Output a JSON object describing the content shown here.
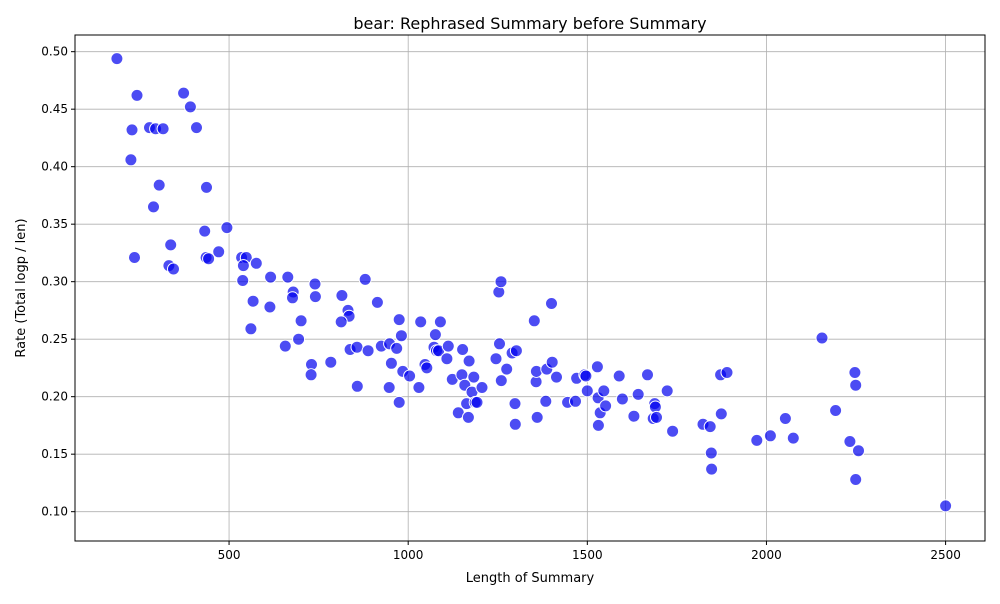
{
  "chart_data": {
    "type": "scatter",
    "title": "bear: Rephrased Summary before Summary",
    "xlabel": "Length of Summary",
    "ylabel": "Rate (Total logp / len)",
    "xlim": [
      70,
      2610
    ],
    "ylim": [
      0.0745,
      0.5145
    ],
    "xticks": [
      500,
      1000,
      1500,
      2000,
      2500
    ],
    "yticks": [
      0.1,
      0.15,
      0.2,
      0.25,
      0.3,
      0.35,
      0.4,
      0.45,
      0.5
    ],
    "xtick_labels": [
      "500",
      "1000",
      "1500",
      "2000",
      "2500"
    ],
    "ytick_labels": [
      "0.10",
      "0.15",
      "0.20",
      "0.25",
      "0.30",
      "0.35",
      "0.40",
      "0.45",
      "0.50"
    ],
    "grid": true,
    "marker_color": "#0000ee",
    "points": [
      [
        187,
        0.494
      ],
      [
        243,
        0.462
      ],
      [
        229,
        0.432
      ],
      [
        278,
        0.434
      ],
      [
        295,
        0.433
      ],
      [
        316,
        0.433
      ],
      [
        226,
        0.406
      ],
      [
        373,
        0.464
      ],
      [
        392,
        0.452
      ],
      [
        409,
        0.434
      ],
      [
        305,
        0.384
      ],
      [
        437,
        0.382
      ],
      [
        289,
        0.365
      ],
      [
        494,
        0.347
      ],
      [
        432,
        0.344
      ],
      [
        337,
        0.332
      ],
      [
        236,
        0.321
      ],
      [
        332,
        0.314
      ],
      [
        345,
        0.311
      ],
      [
        436,
        0.321
      ],
      [
        443,
        0.32
      ],
      [
        471,
        0.326
      ],
      [
        535,
        0.321
      ],
      [
        548,
        0.321
      ],
      [
        540,
        0.314
      ],
      [
        576,
        0.316
      ],
      [
        538,
        0.301
      ],
      [
        567,
        0.283
      ],
      [
        561,
        0.259
      ],
      [
        614,
        0.278
      ],
      [
        616,
        0.304
      ],
      [
        664,
        0.304
      ],
      [
        679,
        0.291
      ],
      [
        677,
        0.286
      ],
      [
        740,
        0.298
      ],
      [
        741,
        0.287
      ],
      [
        657,
        0.244
      ],
      [
        694,
        0.25
      ],
      [
        701,
        0.266
      ],
      [
        730,
        0.228
      ],
      [
        729,
        0.219
      ],
      [
        784,
        0.23
      ],
      [
        815,
        0.288
      ],
      [
        832,
        0.275
      ],
      [
        835,
        0.27
      ],
      [
        813,
        0.265
      ],
      [
        838,
        0.241
      ],
      [
        857,
        0.243
      ],
      [
        880,
        0.302
      ],
      [
        888,
        0.24
      ],
      [
        914,
        0.282
      ],
      [
        925,
        0.244
      ],
      [
        948,
        0.246
      ],
      [
        968,
        0.242
      ],
      [
        975,
        0.267
      ],
      [
        981,
        0.253
      ],
      [
        953,
        0.229
      ],
      [
        985,
        0.222
      ],
      [
        858,
        0.209
      ],
      [
        947,
        0.208
      ],
      [
        975,
        0.195
      ],
      [
        1004,
        0.218
      ],
      [
        1030,
        0.208
      ],
      [
        1035,
        0.265
      ],
      [
        1047,
        0.228
      ],
      [
        1052,
        0.225
      ],
      [
        1072,
        0.243
      ],
      [
        1076,
        0.254
      ],
      [
        1079,
        0.24
      ],
      [
        1085,
        0.24
      ],
      [
        1090,
        0.265
      ],
      [
        1108,
        0.233
      ],
      [
        1112,
        0.244
      ],
      [
        1123,
        0.215
      ],
      [
        1140,
        0.186
      ],
      [
        1152,
        0.241
      ],
      [
        1150,
        0.219
      ],
      [
        1158,
        0.21
      ],
      [
        1163,
        0.194
      ],
      [
        1170,
        0.231
      ],
      [
        1168,
        0.182
      ],
      [
        1178,
        0.204
      ],
      [
        1183,
        0.217
      ],
      [
        1187,
        0.195
      ],
      [
        1192,
        0.195
      ],
      [
        1206,
        0.208
      ],
      [
        1245,
        0.233
      ],
      [
        1253,
        0.291
      ],
      [
        1255,
        0.246
      ],
      [
        1259,
        0.3
      ],
      [
        1260,
        0.214
      ],
      [
        1275,
        0.224
      ],
      [
        1290,
        0.238
      ],
      [
        1298,
        0.194
      ],
      [
        1299,
        0.176
      ],
      [
        1302,
        0.24
      ],
      [
        1352,
        0.266
      ],
      [
        1357,
        0.213
      ],
      [
        1358,
        0.222
      ],
      [
        1360,
        0.182
      ],
      [
        1384,
        0.196
      ],
      [
        1387,
        0.224
      ],
      [
        1400,
        0.281
      ],
      [
        1402,
        0.23
      ],
      [
        1414,
        0.217
      ],
      [
        1445,
        0.195
      ],
      [
        1467,
        0.196
      ],
      [
        1470,
        0.216
      ],
      [
        1493,
        0.219
      ],
      [
        1496,
        0.218
      ],
      [
        1500,
        0.205
      ],
      [
        1528,
        0.226
      ],
      [
        1530,
        0.199
      ],
      [
        1531,
        0.175
      ],
      [
        1536,
        0.186
      ],
      [
        1546,
        0.205
      ],
      [
        1551,
        0.192
      ],
      [
        1589,
        0.218
      ],
      [
        1598,
        0.198
      ],
      [
        1630,
        0.183
      ],
      [
        1642,
        0.202
      ],
      [
        1668,
        0.219
      ],
      [
        1684,
        0.181
      ],
      [
        1688,
        0.194
      ],
      [
        1690,
        0.191
      ],
      [
        1693,
        0.182
      ],
      [
        1723,
        0.205
      ],
      [
        1738,
        0.17
      ],
      [
        1823,
        0.176
      ],
      [
        1843,
        0.174
      ],
      [
        1846,
        0.151
      ],
      [
        1847,
        0.137
      ],
      [
        1872,
        0.219
      ],
      [
        1874,
        0.185
      ],
      [
        1890,
        0.221
      ],
      [
        1973,
        0.162
      ],
      [
        2011,
        0.166
      ],
      [
        2053,
        0.181
      ],
      [
        2075,
        0.164
      ],
      [
        2155,
        0.251
      ],
      [
        2193,
        0.188
      ],
      [
        2233,
        0.161
      ],
      [
        2247,
        0.221
      ],
      [
        2249,
        0.21
      ],
      [
        2249,
        0.128
      ],
      [
        2257,
        0.153
      ],
      [
        2500,
        0.105
      ]
    ]
  }
}
